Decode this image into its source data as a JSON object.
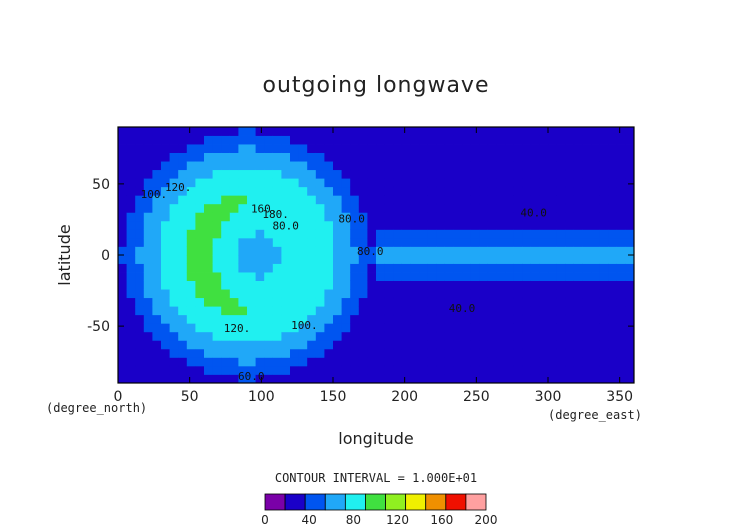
{
  "chart_data": {
    "type": "heatmap",
    "title": "outgoing longwave",
    "xlabel": "longitude",
    "ylabel": "latitude",
    "x_unit": "(degree_east)",
    "y_unit": "(degree_north)",
    "xlim": [
      0,
      360
    ],
    "ylim": [
      -90,
      90
    ],
    "x_ticks": [
      0,
      50,
      100,
      150,
      200,
      250,
      300,
      350
    ],
    "y_ticks": [
      50,
      0,
      -50
    ],
    "contour_interval_text": "CONTOUR INTERVAL = 1.000E+01",
    "contour_labels": [
      {
        "text": "60.0",
        "lon": 93,
        "lat": -88
      },
      {
        "text": "80.0",
        "lon": 163,
        "lat": 23
      },
      {
        "text": "80.0",
        "lon": 176,
        "lat": 0
      },
      {
        "text": "100.",
        "lon": 25,
        "lat": 40
      },
      {
        "text": "100.",
        "lon": 130,
        "lat": -52
      },
      {
        "text": "120.",
        "lon": 42,
        "lat": 45
      },
      {
        "text": "120.",
        "lon": 83,
        "lat": -54
      },
      {
        "text": "160.",
        "lon": 102,
        "lat": 30
      },
      {
        "text": "180.",
        "lon": 110,
        "lat": 26
      },
      {
        "text": "80.0",
        "lon": 117,
        "lat": 18
      },
      {
        "text": "40.0",
        "lon": 290,
        "lat": 27
      },
      {
        "text": "40.0",
        "lon": 240,
        "lat": -40
      }
    ],
    "color_levels": [
      0,
      20,
      40,
      60,
      80,
      100,
      120,
      140,
      160,
      180,
      200
    ],
    "color_fills": [
      "#7a00a8",
      "#1a00c8",
      "#0055f0",
      "#20a8f8",
      "#20f0f0",
      "#40e040",
      "#90f020",
      "#f0f000",
      "#f09000",
      "#f01000",
      "#ffa0a0"
    ],
    "colorbar_ticks": [
      0,
      40,
      80,
      120,
      160,
      200
    ],
    "field_model": {
      "background": 35,
      "warm_pool": {
        "center_lon": 90,
        "center_lat": 0,
        "lon_halfwidth": 90,
        "lat_halfwidth": 90,
        "peak": 135
      },
      "central_minimum": {
        "center_lon": 95,
        "center_lat": 0,
        "depth": 65
      },
      "eastern_tongue": {
        "lon_start": 180,
        "lon_end": 360,
        "lat_halfwidth": 12,
        "value": 70
      }
    }
  }
}
